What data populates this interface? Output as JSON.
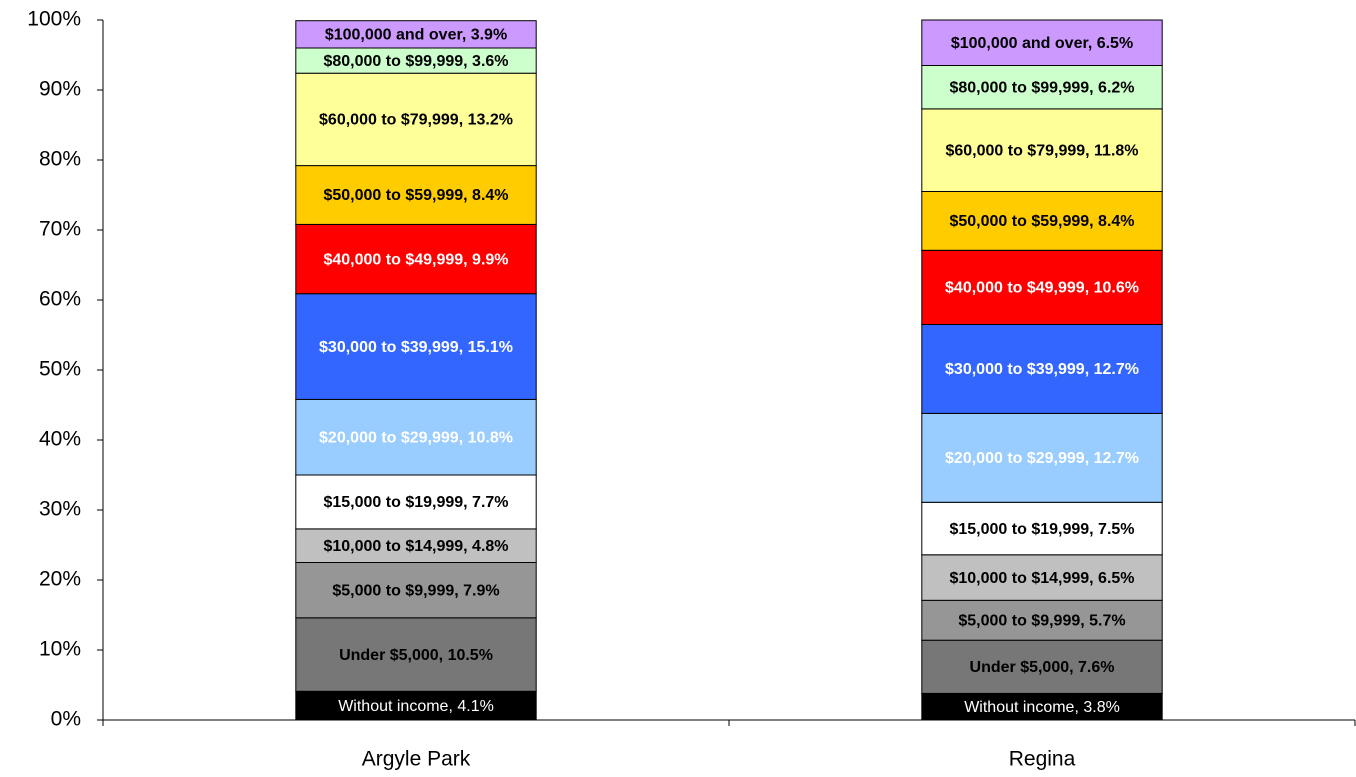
{
  "chart_data": {
    "type": "stacked_bar_100",
    "categories": [
      "Argyle Park",
      "Regina"
    ],
    "ylim": [
      0,
      100
    ],
    "yticks": [
      {
        "value": 0,
        "label": "0%"
      },
      {
        "value": 10,
        "label": "10%"
      },
      {
        "value": 20,
        "label": "20%"
      },
      {
        "value": 30,
        "label": "30%"
      },
      {
        "value": 40,
        "label": "40%"
      },
      {
        "value": 50,
        "label": "50%"
      },
      {
        "value": 60,
        "label": "60%"
      },
      {
        "value": 70,
        "label": "70%"
      },
      {
        "value": 80,
        "label": "80%"
      },
      {
        "value": 90,
        "label": "90%"
      },
      {
        "value": 100,
        "label": "100%"
      }
    ],
    "grid": false,
    "series": [
      {
        "name": "Without income",
        "color": "#000000",
        "label_color": "#ffffff",
        "values": [
          4.1,
          3.8
        ],
        "value_labels": [
          "Without income, 4.1%",
          "Without income, 3.8%"
        ]
      },
      {
        "name": "Under $5,000",
        "color": "#777777",
        "label_color": "#000000",
        "values": [
          10.5,
          7.6
        ],
        "value_labels": [
          "Under $5,000, 10.5%",
          "Under $5,000, 7.6%"
        ]
      },
      {
        "name": "$5,000 to $9,999",
        "color": "#969696",
        "label_color": "#000000",
        "values": [
          7.9,
          5.7
        ],
        "value_labels": [
          "$5,000 to $9,999, 7.9%",
          "$5,000 to $9,999, 5.7%"
        ]
      },
      {
        "name": "$10,000 to $14,999",
        "color": "#c0c0c0",
        "label_color": "#000000",
        "values": [
          4.8,
          6.5
        ],
        "value_labels": [
          "$10,000 to $14,999, 4.8%",
          "$10,000 to $14,999, 6.5%"
        ]
      },
      {
        "name": "$15,000 to $19,999",
        "color": "#ffffff",
        "label_color": "#000000",
        "values": [
          7.7,
          7.5
        ],
        "value_labels": [
          "$15,000 to $19,999, 7.7%",
          "$15,000 to $19,999, 7.5%"
        ]
      },
      {
        "name": "$20,000 to $29,999",
        "color": "#99ccff",
        "label_color": "#ffffff",
        "values": [
          10.8,
          12.7
        ],
        "value_labels": [
          "$20,000 to $29,999, 10.8%",
          "$20,000 to $29,999, 12.7%"
        ]
      },
      {
        "name": "$30,000 to $39,999",
        "color": "#3366ff",
        "label_color": "#ffffff",
        "values": [
          15.1,
          12.7
        ],
        "value_labels": [
          "$30,000 to $39,999, 15.1%",
          "$30,000 to $39,999, 12.7%"
        ]
      },
      {
        "name": "$40,000 to $49,999",
        "color": "#ff0000",
        "label_color": "#ffffff",
        "values": [
          9.9,
          10.6
        ],
        "value_labels": [
          "$40,000 to $49,999, 9.9%",
          "$40,000 to $49,999, 10.6%"
        ]
      },
      {
        "name": "$50,000 to $59,999",
        "color": "#ffcc00",
        "label_color": "#000000",
        "values": [
          8.4,
          8.4
        ],
        "value_labels": [
          "$50,000 to $59,999, 8.4%",
          "$50,000 to $59,999, 8.4%"
        ]
      },
      {
        "name": "$60,000 to $79,999",
        "color": "#ffff99",
        "label_color": "#000000",
        "values": [
          13.2,
          11.8
        ],
        "value_labels": [
          "$60,000 to $79,999, 13.2%",
          "$60,000 to $79,999, 11.8%"
        ]
      },
      {
        "name": "$80,000 to $99,999",
        "color": "#ccffcc",
        "label_color": "#000000",
        "values": [
          3.6,
          6.2
        ],
        "value_labels": [
          "$80,000 to $99,999, 3.6%",
          "$80,000 to $99,999, 6.2%"
        ]
      },
      {
        "name": "$100,000 and over",
        "color": "#cc99ff",
        "label_color": "#000000",
        "values": [
          3.9,
          6.5
        ],
        "value_labels": [
          "$100,000 and over, 3.9%",
          "$100,000 and over, 6.5%"
        ]
      }
    ]
  }
}
